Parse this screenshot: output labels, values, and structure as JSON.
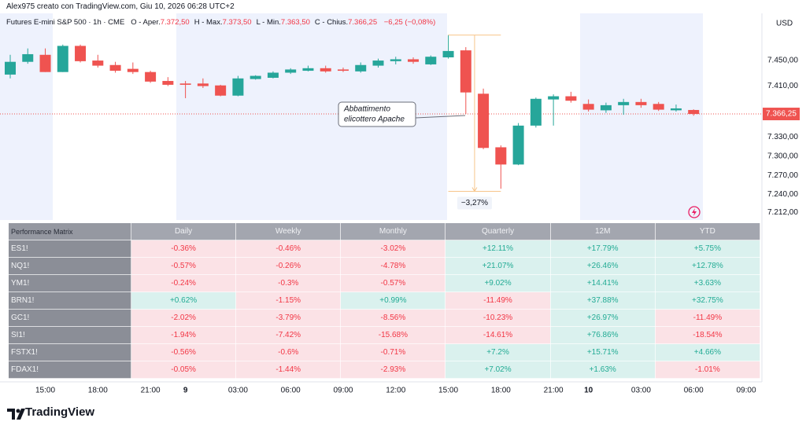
{
  "header": {
    "credit": "Alex975 creato con TradingView.com, Giu 10, 2026 06:28 UTC+2",
    "symbol": "Futures E-mini S&P 500 · 1h · CME",
    "ohlc": [
      {
        "label": "O - Aper.",
        "value": "7.372,50"
      },
      {
        "label": "H - Max.",
        "value": "7.373,50"
      },
      {
        "label": "L - Min.",
        "value": "7.363,50"
      },
      {
        "label": "C - Chius.",
        "value": "7.366,25"
      }
    ],
    "change": "−6,25 (−0,08%)"
  },
  "chart_data": {
    "type": "candlestick",
    "currency": "USD",
    "up_color": "#26a69a",
    "down_color": "#ef5350",
    "grid": false,
    "categories": [
      null,
      null,
      "15:00",
      null,
      null,
      "18:00",
      null,
      null,
      "21:00",
      null,
      "9",
      null,
      null,
      "03:00",
      null,
      null,
      "06:00",
      null,
      null,
      "09:00",
      null,
      null,
      "12:00",
      null,
      null,
      "15:00",
      null,
      null,
      "18:00",
      null,
      null,
      "21:00",
      null,
      "10",
      null,
      null,
      "03:00",
      null,
      null,
      "06:00",
      null,
      null,
      "09:00"
    ],
    "open": [
      7428,
      7448,
      7459,
      7432,
      7473,
      7450,
      7443,
      7437,
      7432,
      7418,
      7414,
      7414,
      7411,
      7395,
      7421,
      7423,
      7431,
      7434,
      7438,
      7436,
      7433,
      7442,
      7449,
      7452,
      7444,
      7455,
      7466,
      7398,
      7314,
      7287,
      7348,
      7389,
      7394,
      7382,
      7372,
      7380,
      7385,
      7382,
      7372,
      7372.5,
      null,
      null,
      null
    ],
    "high": [
      7459,
      7469,
      7469,
      7475,
      7475,
      7459,
      7448,
      7447,
      7434,
      7424,
      7418,
      7422,
      7412,
      7426,
      7427,
      7433,
      7438,
      7442,
      7442,
      7439,
      7447,
      7453,
      7456,
      7455,
      7458,
      7490,
      7471,
      7406,
      7317,
      7352,
      7392,
      7397,
      7401,
      7389,
      7384,
      7390,
      7390,
      7385,
      7381,
      7373.5,
      null,
      null,
      null
    ],
    "low": [
      7422,
      7445,
      7432,
      7432,
      7447,
      7439,
      7431,
      7429,
      7415,
      7410,
      7391,
      7407,
      7394,
      7394,
      7420,
      7422,
      7429,
      7433,
      7431,
      7432,
      7431,
      7439,
      7444,
      7445,
      7443,
      7453,
      7366,
      7311,
      7249,
      7286,
      7345,
      7348,
      7384,
      7370,
      7368,
      7365,
      7376,
      7371,
      7370,
      7363.5,
      null,
      null,
      null
    ],
    "close": [
      7448,
      7460,
      7432,
      7473,
      7449,
      7442,
      7434,
      7432,
      7417,
      7412,
      7412,
      7410,
      7395,
      7422,
      7426,
      7431,
      7436,
      7438,
      7433,
      7434,
      7443,
      7450,
      7452,
      7448,
      7456,
      7465,
      7400,
      7313,
      7287,
      7348,
      7390,
      7394,
      7387,
      7373,
      7380,
      7385,
      7380,
      7373,
      7375,
      7366.25,
      null,
      null,
      null
    ],
    "ylim": [
      7200,
      7524
    ],
    "yticks": [
      {
        "value": 7212,
        "label": "7.212,00"
      },
      {
        "value": 7240,
        "label": "7.240,00"
      },
      {
        "value": 7270,
        "label": "7.270,00"
      },
      {
        "value": 7300,
        "label": "7.300,00"
      },
      {
        "value": 7330,
        "label": "7.330,00"
      },
      {
        "value": 7410,
        "label": "7.410,00"
      },
      {
        "value": 7450,
        "label": "7.450,00"
      }
    ],
    "last_price": {
      "value": 7366.25,
      "label": "7.366,25"
    },
    "measure": {
      "from": 7490,
      "to": 7245,
      "label": "−3,27%"
    },
    "annotations": [
      {
        "lines": [
          "Abbattimento",
          "elicottero Apache"
        ]
      }
    ]
  },
  "table": {
    "header": [
      "Performance Matrix",
      "Daily",
      "Weekly",
      "Monthly",
      "Quarterly",
      "12M",
      "YTD"
    ],
    "rows": [
      [
        "ES1!",
        "-0.36%",
        "-0.46%",
        "-3.02%",
        "+12.11%",
        "+17.79%",
        "+5.75%"
      ],
      [
        "NQ1!",
        "-0.57%",
        "-0.26%",
        "-4.78%",
        "+21.07%",
        "+26.46%",
        "+12.78%"
      ],
      [
        "YM1!",
        "-0.24%",
        "-0.3%",
        "-0.57%",
        "+9.02%",
        "+14.41%",
        "+3.63%"
      ],
      [
        "BRN1!",
        "+0.62%",
        "-1.15%",
        "+0.99%",
        "-11.49%",
        "+37.88%",
        "+32.75%"
      ],
      [
        "GC1!",
        "-2.02%",
        "-3.79%",
        "-8.56%",
        "-10.23%",
        "+26.97%",
        "-11.49%"
      ],
      [
        "SI1!",
        "-1.94%",
        "-7.42%",
        "-15.68%",
        "-14.61%",
        "+76.86%",
        "-18.54%"
      ],
      [
        "FSTX1!",
        "-0.56%",
        "-0.6%",
        "-0.71%",
        "+7.2%",
        "+15.71%",
        "+4.66%"
      ],
      [
        "FDAX1!",
        "-0.05%",
        "-1.44%",
        "-2.93%",
        "+7.02%",
        "+1.63%",
        "-1.01%"
      ]
    ]
  },
  "footer": {
    "brand": "TradingView"
  }
}
